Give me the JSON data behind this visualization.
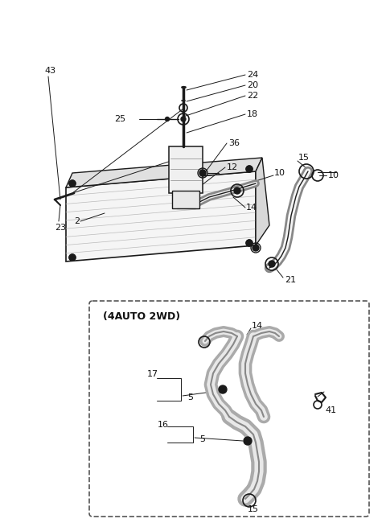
{
  "bg_color": "#ffffff",
  "lc": "#1a1a1a",
  "fig_width": 4.8,
  "fig_height": 6.55,
  "dpi": 100,
  "inset_label": "(4AUTO 2WD)"
}
